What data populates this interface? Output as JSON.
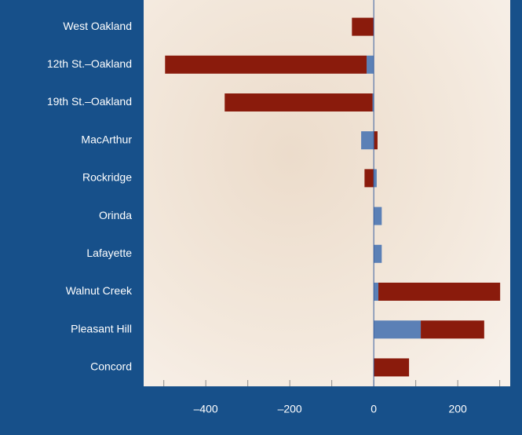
{
  "chart_data": {
    "type": "bar",
    "orientation": "horizontal",
    "stacked": true,
    "categories": [
      "West Oakland",
      "12th St.–Oakland",
      "19th St.–Oakland",
      "MacArthur",
      "Rockridge",
      "Orinda",
      "Lafayette",
      "Walnut Creek",
      "Pleasant Hill",
      "Concord"
    ],
    "series": [
      {
        "color": "#5b80b6",
        "values": [
          0,
          -17,
          -3,
          -30,
          7,
          19,
          19,
          11,
          112,
          0
        ]
      },
      {
        "color": "#8a1b0c",
        "values": [
          -52,
          -480,
          -352,
          9,
          -22,
          0,
          0,
          290,
          151,
          84
        ]
      }
    ],
    "xlim": [
      -548,
      325
    ],
    "xticks": [
      {
        "value": -400,
        "label": "–400"
      },
      {
        "value": -200,
        "label": "–200"
      },
      0,
      200
    ],
    "xticks_minor": [
      -500,
      -300,
      -100,
      100,
      300
    ]
  }
}
